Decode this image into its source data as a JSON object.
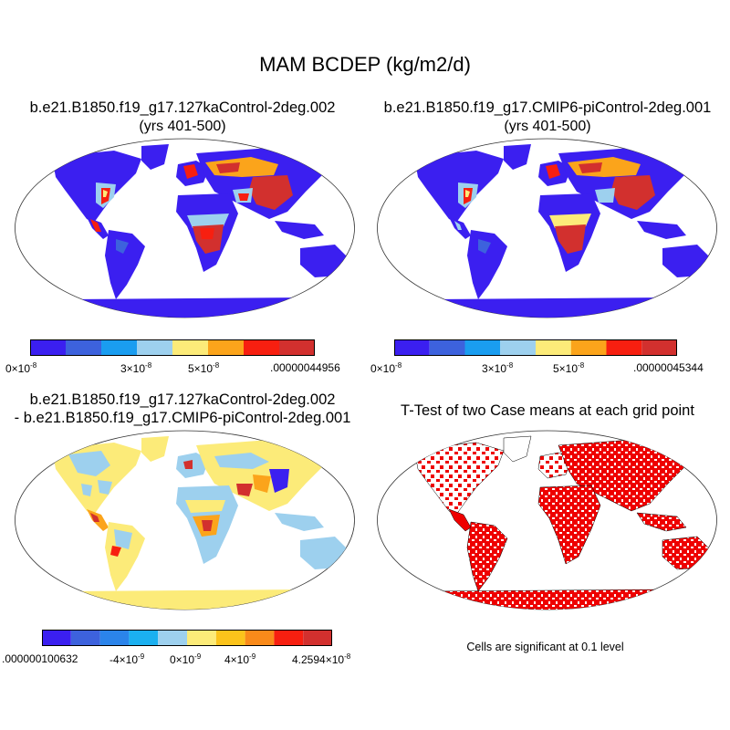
{
  "figure": {
    "title": "MAM BCDEP (kg/m2/d)"
  },
  "panels": {
    "top_left": {
      "title": "b.e21.B1850.f19_g17.127kaControl-2deg.002",
      "subtitle": "(yrs 401-500)",
      "colorbar_colors": [
        "#3b1ff0",
        "#3d62dd",
        "#1a9df0",
        "#9dd0ee",
        "#fceb79",
        "#fba41b",
        "#f71f10",
        "#d2302e"
      ],
      "colorbar_labels": {
        "first_base": "0×10",
        "first_exp": "-8",
        "second_base": "3×10",
        "second_exp": "-8",
        "third_base": "5×10",
        "third_exp": "-8",
        "last": ".00000044956"
      }
    },
    "top_right": {
      "title": "b.e21.B1850.f19_g17.CMIP6-piControl-2deg.001",
      "subtitle": "(yrs 401-500)",
      "colorbar_colors": [
        "#3b1ff0",
        "#3d62dd",
        "#1a9df0",
        "#9dd0ee",
        "#fceb79",
        "#fba41b",
        "#f71f10",
        "#d2302e"
      ],
      "colorbar_labels": {
        "first_base": "0×10",
        "first_exp": "-8",
        "second_base": "3×10",
        "second_exp": "-8",
        "third_base": "5×10",
        "third_exp": "-8",
        "last": ".00000045344"
      }
    },
    "bottom_left": {
      "title_line1": "b.e21.B1850.f19_g17.127kaControl-2deg.002",
      "title_line2": "- b.e21.B1850.f19_g17.CMIP6-piControl-2deg.001",
      "colorbar_colors": [
        "#3b1ff0",
        "#3d62dd",
        "#2b84ea",
        "#1bb0f0",
        "#9dd0ee",
        "#fceb79",
        "#fbc31b",
        "#f98a1a",
        "#f71f10",
        "#d2302e"
      ],
      "colorbar_labels": {
        "first": ".000000100632",
        "second_base": "-4×10",
        "second_exp": "-9",
        "third_base": "0×10",
        "third_exp": "-9",
        "fourth_base": "4×10",
        "fourth_exp": "-9",
        "last_base": "4.2594×10",
        "last_exp": "-8"
      }
    },
    "bottom_right": {
      "title": "T-Test of two Case means at each grid point",
      "note": "Cells are significant at 0.1 level",
      "fill_color": "#ee0000"
    }
  }
}
